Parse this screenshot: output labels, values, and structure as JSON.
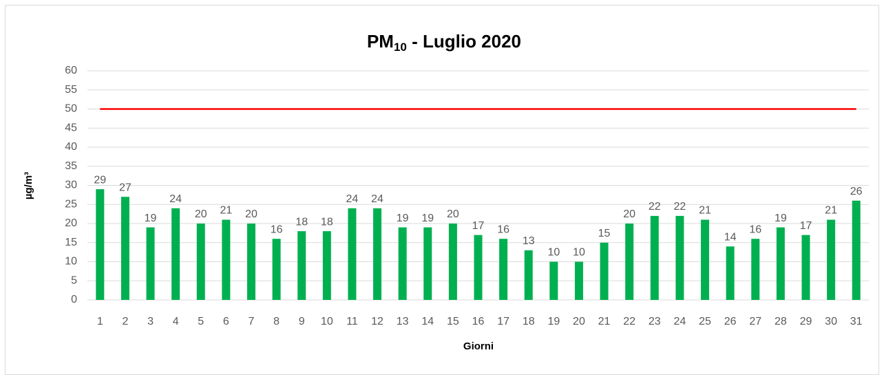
{
  "chart_data": {
    "type": "bar",
    "title": {
      "main": "PM",
      "sub": "10",
      "rest": " - Luglio 2020"
    },
    "x_label": "Giorni",
    "y_label": "µg/m³",
    "categories": [
      "1",
      "2",
      "3",
      "4",
      "5",
      "6",
      "7",
      "8",
      "9",
      "10",
      "11",
      "12",
      "13",
      "14",
      "15",
      "16",
      "17",
      "18",
      "19",
      "20",
      "21",
      "22",
      "23",
      "24",
      "25",
      "26",
      "27",
      "28",
      "29",
      "30",
      "31"
    ],
    "values": [
      29,
      27,
      19,
      24,
      20,
      21,
      20,
      16,
      18,
      18,
      24,
      24,
      19,
      19,
      20,
      17,
      16,
      13,
      10,
      10,
      15,
      20,
      22,
      22,
      21,
      14,
      16,
      19,
      17,
      21,
      26
    ],
    "color": "#00b050",
    "reference_line": {
      "value": 50,
      "color": "#ff0000"
    },
    "ylim": [
      0,
      60
    ],
    "yticks": [
      0,
      5,
      10,
      15,
      20,
      25,
      30,
      35,
      40,
      45,
      50,
      55,
      60
    ],
    "grid": true
  }
}
